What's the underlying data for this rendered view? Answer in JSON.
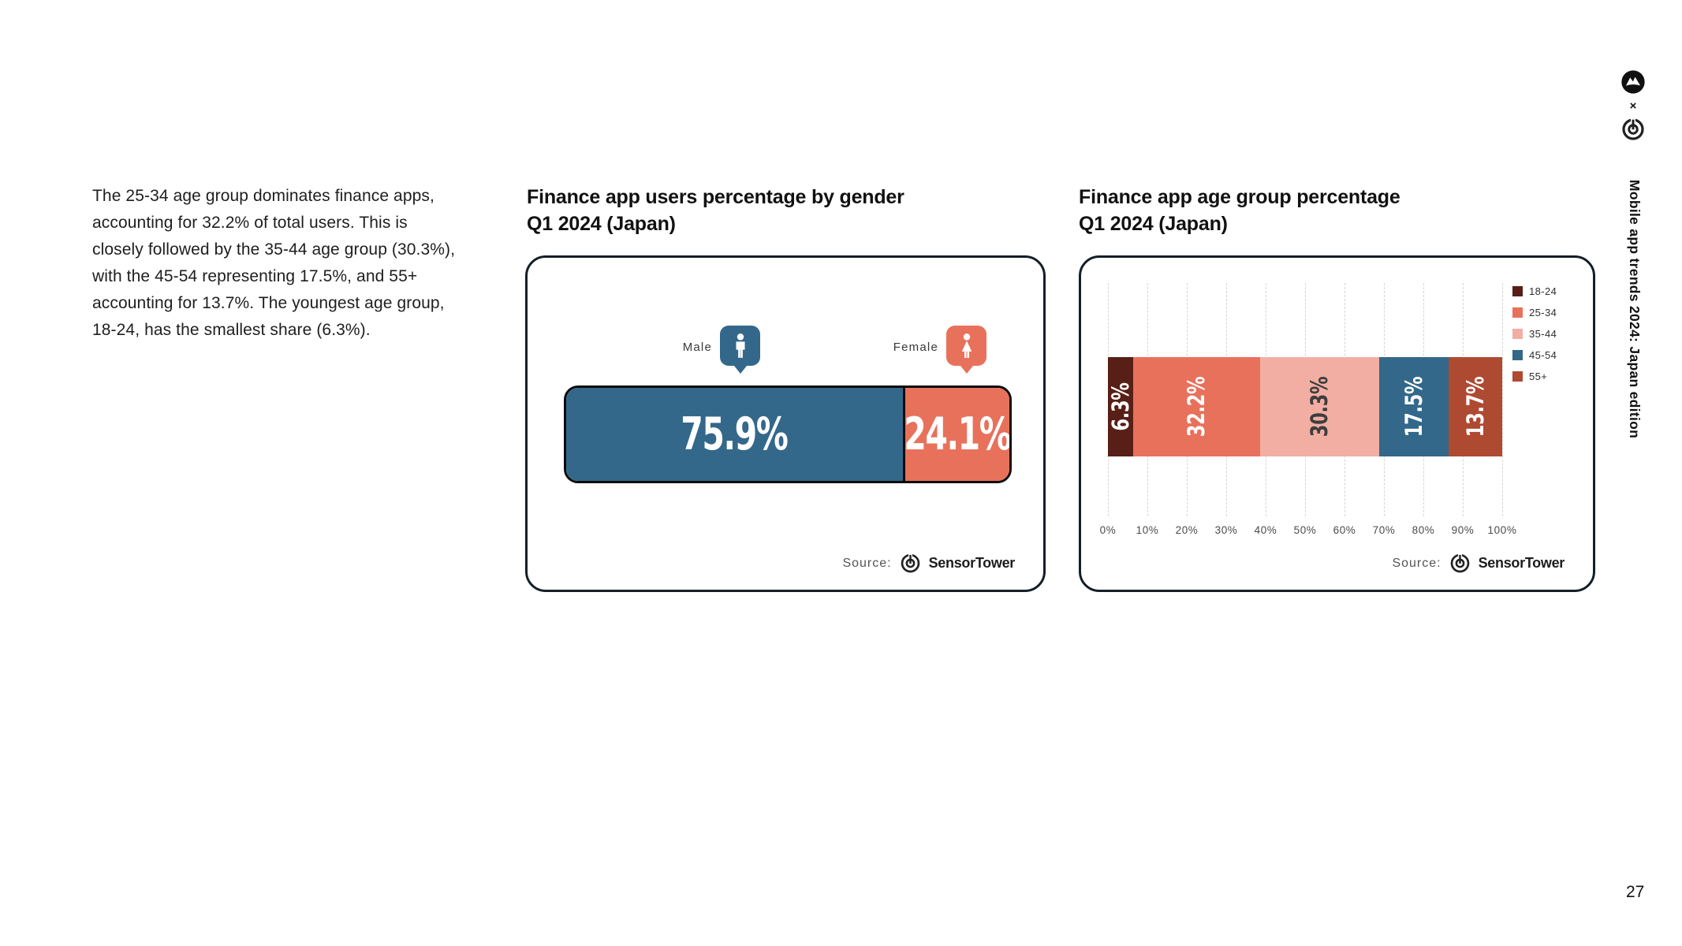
{
  "page": {
    "number": "27",
    "edition_label": "Mobile app trends 2024: Japan edition",
    "logo_separator": "×",
    "intro_paragraph": "The 25-34 age group dominates finance apps, accounting for 32.2% of total users. This is closely followed by the 35-44 age group (30.3%), with the 45-54 representing 17.5%, and 55+ accounting for 13.7%. The youngest age group, 18-24, has the smallest share (6.3%).",
    "source_label": "Source:",
    "source_brand": "SensorTower"
  },
  "gender_chart": {
    "title_line1": "Finance app users percentage by gender",
    "title_line2": "Q1 2024 (Japan)",
    "male_label": "Male",
    "female_label": "Female",
    "male_value_label": "75.9%",
    "female_value_label": "24.1%"
  },
  "age_chart": {
    "title_line1": "Finance app age group percentage",
    "title_line2": "Q1 2024 (Japan)"
  },
  "chart_data": [
    {
      "id": "gender-split",
      "type": "bar",
      "orientation": "horizontal-stacked",
      "title": "Finance app users percentage by gender Q1 2024 (Japan)",
      "categories": [
        "Male",
        "Female"
      ],
      "values": [
        75.9,
        24.1
      ],
      "unit": "%",
      "colors": [
        "#33688A",
        "#E8715C"
      ],
      "value_labels": [
        "75.9%",
        "24.1%"
      ],
      "grid": "off",
      "source": "SensorTower"
    },
    {
      "id": "age-groups",
      "type": "bar",
      "orientation": "horizontal-stacked",
      "title": "Finance app age group percentage Q1 2024 (Japan)",
      "categories": [
        "18-24",
        "25-34",
        "35-44",
        "45-54",
        "55+"
      ],
      "values": [
        6.3,
        32.2,
        30.3,
        17.5,
        13.7
      ],
      "unit": "%",
      "colors": [
        "#571F15",
        "#E8715C",
        "#F2AEA3",
        "#33688A",
        "#AF4A32"
      ],
      "value_label_colors": [
        "#ffffff",
        "#ffffff",
        "#3d3d3d",
        "#ffffff",
        "#ffffff"
      ],
      "value_labels": [
        "6.3%",
        "32.2%",
        "30.3%",
        "17.5%",
        "13.7%"
      ],
      "xlim": [
        0,
        100
      ],
      "x_ticks": [
        "0%",
        "10%",
        "20%",
        "30%",
        "40%",
        "50%",
        "60%",
        "70%",
        "80%",
        "90%",
        "100%"
      ],
      "grid": "vertical-dashed",
      "legend_position": "top-right",
      "source": "SensorTower"
    }
  ]
}
